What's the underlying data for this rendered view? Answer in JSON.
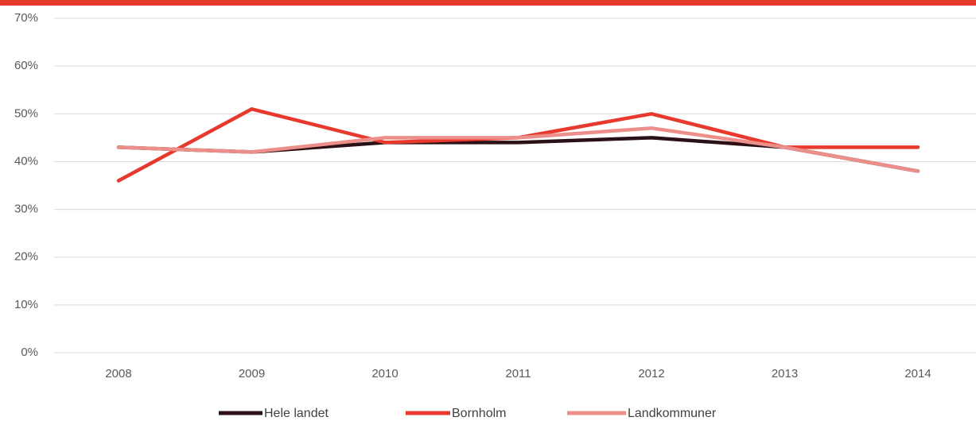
{
  "chart_data": {
    "type": "line",
    "categories": [
      "2008",
      "2009",
      "2010",
      "2011",
      "2012",
      "2013",
      "2014"
    ],
    "series": [
      {
        "name": "Hele landet",
        "color": "#2b1015",
        "values": [
          43,
          42,
          44,
          44,
          45,
          43,
          38
        ]
      },
      {
        "name": "Bornholm",
        "color": "#e8392e",
        "values": [
          36,
          51,
          44,
          45,
          50,
          43,
          43
        ]
      },
      {
        "name": "Landkommuner",
        "color": "#ec8e89",
        "values": [
          43,
          42,
          45,
          45,
          47,
          43,
          38
        ]
      }
    ],
    "ylim": [
      0,
      70
    ],
    "yticks": [
      {
        "value": 0,
        "label": "0%"
      },
      {
        "value": 10,
        "label": "10%"
      },
      {
        "value": 20,
        "label": "20%"
      },
      {
        "value": 30,
        "label": "30%"
      },
      {
        "value": 40,
        "label": "40%"
      },
      {
        "value": 50,
        "label": "50%"
      },
      {
        "value": 60,
        "label": "60%"
      },
      {
        "value": 70,
        "label": "70%"
      }
    ],
    "grid": true,
    "legend": "bottom"
  }
}
